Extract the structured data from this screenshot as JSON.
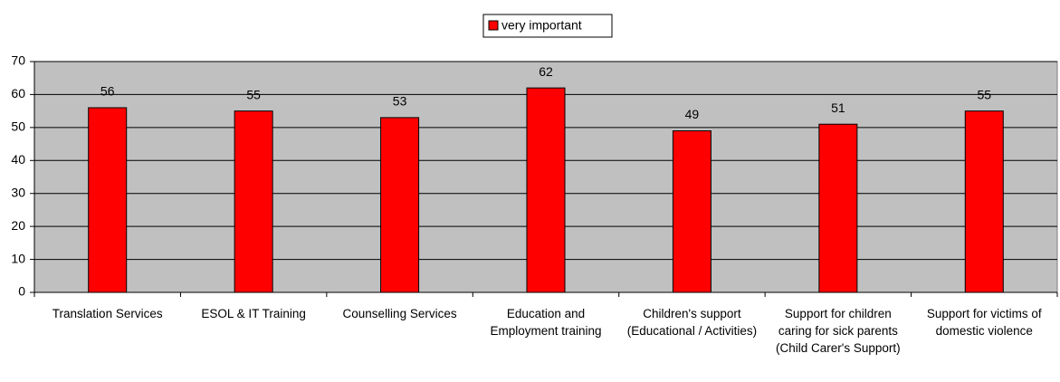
{
  "chart_data": {
    "type": "bar",
    "categories": [
      "Translation Services",
      "ESOL & IT Training",
      "Counselling Services",
      "Education and Employment training",
      "Children's support (Educational / Activities)",
      "Support for children caring for sick parents (Child Carer's Support)",
      "Support for victims of domestic violence"
    ],
    "series": [
      {
        "name": "very important",
        "color": "#ff0000",
        "values": [
          56,
          55,
          53,
          62,
          49,
          51,
          55
        ]
      }
    ],
    "ylim": [
      0,
      70
    ],
    "yticks": [
      0,
      10,
      20,
      30,
      40,
      50,
      60,
      70
    ],
    "grid": true,
    "legend": "top"
  }
}
